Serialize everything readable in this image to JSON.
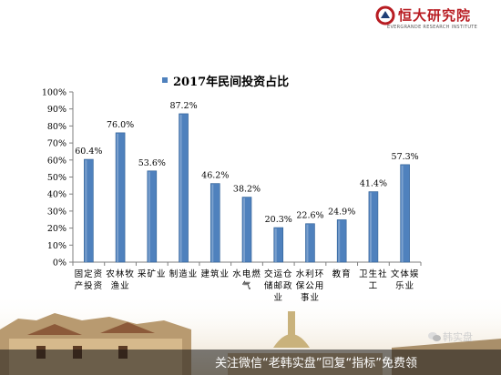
{
  "header": {
    "brand_cn": "恒大研究院",
    "brand_en": "EVERGRANDE RESEARCH INSTITUTE"
  },
  "footer": {
    "promo_text": "关注微信“老韩实盘”回复“指标”免费领",
    "watermark": "韩实盘"
  },
  "colors": {
    "bar": "#4f81bd",
    "bar_dark": "#2f5f95",
    "axis": "#7f7f7f",
    "brand": "#b81c22"
  },
  "chart_data": {
    "type": "bar",
    "title": "2017年民间投资占比",
    "categories": [
      [
        "固定资",
        "产投资"
      ],
      [
        "农林牧",
        "渔业"
      ],
      [
        "采矿业"
      ],
      [
        "制造业"
      ],
      [
        "建筑业"
      ],
      [
        "水电燃",
        "气"
      ],
      [
        "交运仓",
        "储邮政",
        "业"
      ],
      [
        "水利环",
        "保公用",
        "事业"
      ],
      [
        "教育"
      ],
      [
        "卫生社",
        "工"
      ],
      [
        "文体娱",
        "乐业"
      ]
    ],
    "values": [
      60.4,
      76.0,
      53.6,
      87.2,
      46.2,
      38.2,
      20.3,
      22.6,
      24.9,
      41.4,
      57.3
    ],
    "data_labels": [
      "60.4%",
      "76.0%",
      "53.6%",
      "87.2%",
      "46.2%",
      "38.2%",
      "20.3%",
      "22.6%",
      "24.9%",
      "41.4%",
      "57.3%"
    ],
    "y_ticks": [
      "0%",
      "10%",
      "20%",
      "30%",
      "40%",
      "50%",
      "60%",
      "70%",
      "80%",
      "90%",
      "100%"
    ],
    "ylim": [
      0,
      100
    ],
    "legend_placement": "top-center",
    "grid": false
  }
}
